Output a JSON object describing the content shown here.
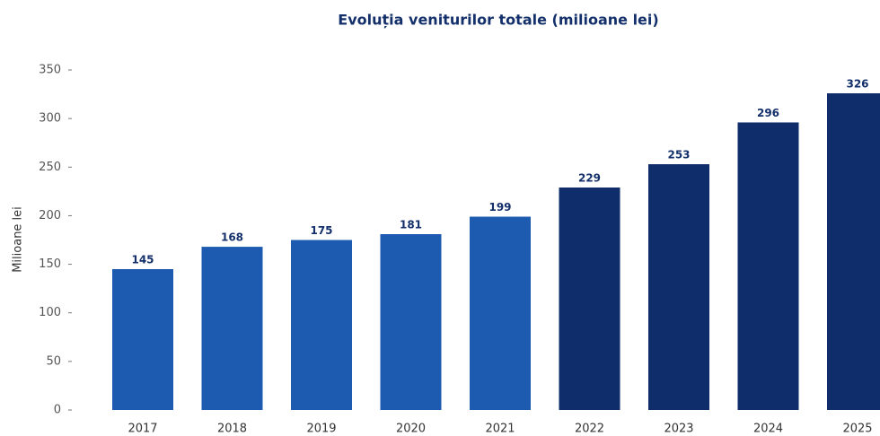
{
  "chart_data": {
    "type": "bar",
    "title": "Evoluția veniturilor totale (milioane lei)",
    "ylabel": "Milioane lei",
    "categories": [
      "2017",
      "2018",
      "2019",
      "2020",
      "2021",
      "2022",
      "2023",
      "2024",
      "2025"
    ],
    "values": [
      145,
      168,
      175,
      181,
      199,
      229,
      253,
      296,
      326
    ],
    "colors": [
      "#1c5bb0",
      "#1c5bb0",
      "#1c5bb0",
      "#1c5bb0",
      "#1c5bb0",
      "#0f2d6b",
      "#0f2d6b",
      "#0f2d6b",
      "#0f2d6b"
    ],
    "ylim": [
      0,
      350
    ],
    "yticks": [
      0,
      50,
      100,
      150,
      200,
      250,
      300,
      350
    ],
    "grid": false
  }
}
